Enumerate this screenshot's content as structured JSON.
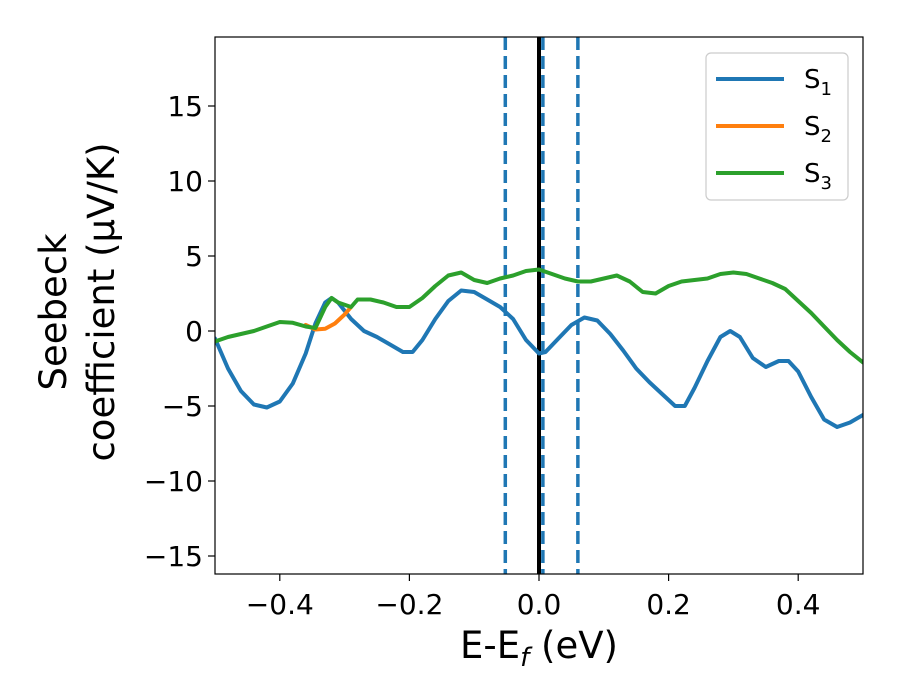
{
  "chart_data": {
    "type": "line",
    "xlabel": "E-E_f (eV)",
    "xlabel_parts": {
      "main": "E-E",
      "sub": "f",
      "rest": " (eV)"
    },
    "ylabel_line1": "Seebeck",
    "ylabel_line2": "coefficient  (μV/K)",
    "xlim": [
      -0.5,
      0.5
    ],
    "ylim": [
      -16.2,
      19.6
    ],
    "xticks": [
      -0.4,
      -0.2,
      0.0,
      0.2,
      0.4
    ],
    "xtick_labels": [
      "−0.4",
      "−0.2",
      "0.0",
      "0.2",
      "0.4"
    ],
    "yticks": [
      -15,
      -10,
      -5,
      0,
      5,
      10,
      15
    ],
    "ytick_labels": [
      "−15",
      "−10",
      "−5",
      "0",
      "5",
      "10",
      "15"
    ],
    "grid": false,
    "legend_position": "top-right",
    "series": [
      {
        "name": "S1",
        "label_main": "S",
        "label_sub": "1",
        "color": "#1f77b4",
        "points": [
          [
            -0.5,
            -0.5
          ],
          [
            -0.48,
            -2.5
          ],
          [
            -0.46,
            -4.0
          ],
          [
            -0.44,
            -4.9
          ],
          [
            -0.42,
            -5.1
          ],
          [
            -0.4,
            -4.7
          ],
          [
            -0.38,
            -3.5
          ],
          [
            -0.36,
            -1.5
          ],
          [
            -0.345,
            0.5
          ],
          [
            -0.33,
            1.9
          ],
          [
            -0.32,
            2.2
          ],
          [
            -0.31,
            1.9
          ],
          [
            -0.29,
            0.8
          ],
          [
            -0.27,
            0.0
          ],
          [
            -0.25,
            -0.4
          ],
          [
            -0.23,
            -0.9
          ],
          [
            -0.21,
            -1.4
          ],
          [
            -0.195,
            -1.4
          ],
          [
            -0.18,
            -0.6
          ],
          [
            -0.16,
            0.8
          ],
          [
            -0.14,
            2.0
          ],
          [
            -0.12,
            2.7
          ],
          [
            -0.1,
            2.6
          ],
          [
            -0.08,
            2.1
          ],
          [
            -0.06,
            1.6
          ],
          [
            -0.04,
            0.8
          ],
          [
            -0.02,
            -0.6
          ],
          [
            0.0,
            -1.5
          ],
          [
            0.01,
            -1.4
          ],
          [
            0.03,
            -0.5
          ],
          [
            0.05,
            0.4
          ],
          [
            0.07,
            0.9
          ],
          [
            0.09,
            0.7
          ],
          [
            0.11,
            -0.2
          ],
          [
            0.13,
            -1.3
          ],
          [
            0.15,
            -2.5
          ],
          [
            0.17,
            -3.4
          ],
          [
            0.19,
            -4.2
          ],
          [
            0.21,
            -5.0
          ],
          [
            0.225,
            -5.0
          ],
          [
            0.24,
            -3.8
          ],
          [
            0.26,
            -2.0
          ],
          [
            0.28,
            -0.4
          ],
          [
            0.295,
            0.0
          ],
          [
            0.31,
            -0.4
          ],
          [
            0.33,
            -1.8
          ],
          [
            0.35,
            -2.4
          ],
          [
            0.37,
            -2.0
          ],
          [
            0.385,
            -2.0
          ],
          [
            0.4,
            -2.7
          ],
          [
            0.42,
            -4.4
          ],
          [
            0.44,
            -5.9
          ],
          [
            0.46,
            -6.4
          ],
          [
            0.48,
            -6.1
          ],
          [
            0.5,
            -5.6
          ]
        ]
      },
      {
        "name": "S2",
        "label_main": "S",
        "label_sub": "2",
        "color": "#ff7f0e",
        "points": [
          [
            -0.36,
            0.4
          ],
          [
            -0.345,
            0.1
          ],
          [
            -0.33,
            0.15
          ],
          [
            -0.315,
            0.5
          ],
          [
            -0.3,
            1.1
          ],
          [
            -0.29,
            1.6
          ]
        ]
      },
      {
        "name": "S3",
        "label_main": "S",
        "label_sub": "3",
        "color": "#2ca02c",
        "points": [
          [
            -0.5,
            -0.7
          ],
          [
            -0.48,
            -0.4
          ],
          [
            -0.46,
            -0.2
          ],
          [
            -0.44,
            0.0
          ],
          [
            -0.42,
            0.3
          ],
          [
            -0.4,
            0.6
          ],
          [
            -0.38,
            0.55
          ],
          [
            -0.36,
            0.3
          ],
          [
            -0.345,
            0.2
          ],
          [
            -0.33,
            1.6
          ],
          [
            -0.32,
            2.2
          ],
          [
            -0.31,
            1.9
          ],
          [
            -0.29,
            1.6
          ],
          [
            -0.28,
            2.1
          ],
          [
            -0.26,
            2.1
          ],
          [
            -0.24,
            1.9
          ],
          [
            -0.22,
            1.6
          ],
          [
            -0.2,
            1.6
          ],
          [
            -0.18,
            2.2
          ],
          [
            -0.16,
            3.0
          ],
          [
            -0.14,
            3.7
          ],
          [
            -0.12,
            3.9
          ],
          [
            -0.1,
            3.4
          ],
          [
            -0.08,
            3.2
          ],
          [
            -0.06,
            3.5
          ],
          [
            -0.04,
            3.7
          ],
          [
            -0.02,
            4.0
          ],
          [
            0.0,
            4.1
          ],
          [
            0.02,
            3.8
          ],
          [
            0.04,
            3.5
          ],
          [
            0.06,
            3.3
          ],
          [
            0.08,
            3.3
          ],
          [
            0.1,
            3.5
          ],
          [
            0.12,
            3.7
          ],
          [
            0.14,
            3.3
          ],
          [
            0.16,
            2.6
          ],
          [
            0.18,
            2.5
          ],
          [
            0.2,
            3.0
          ],
          [
            0.22,
            3.3
          ],
          [
            0.24,
            3.4
          ],
          [
            0.26,
            3.5
          ],
          [
            0.28,
            3.8
          ],
          [
            0.3,
            3.9
          ],
          [
            0.32,
            3.8
          ],
          [
            0.34,
            3.5
          ],
          [
            0.36,
            3.2
          ],
          [
            0.38,
            2.8
          ],
          [
            0.4,
            2.0
          ],
          [
            0.42,
            1.2
          ],
          [
            0.44,
            0.3
          ],
          [
            0.46,
            -0.6
          ],
          [
            0.48,
            -1.4
          ],
          [
            0.5,
            -2.1
          ]
        ]
      }
    ],
    "vertical_lines": [
      {
        "x": 0.0,
        "style": "solid",
        "color": "#000000"
      },
      {
        "x": -0.052,
        "style": "dashed",
        "color": "#1f77b4"
      },
      {
        "x": 0.006,
        "style": "dashed",
        "color": "#1f77b4"
      },
      {
        "x": 0.06,
        "style": "dashed",
        "color": "#1f77b4"
      }
    ]
  }
}
